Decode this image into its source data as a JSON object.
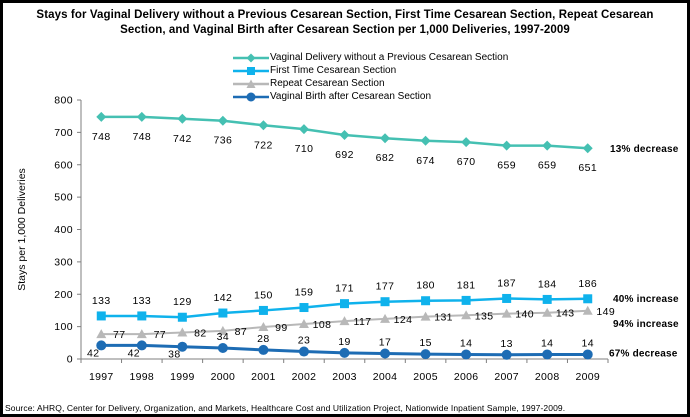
{
  "source": "Source: AHRQ, Center for Delivery, Organization, and Markets, Healthcare Cost and Utilization Project, Nationwide Inpatient Sample, 1997-2009.",
  "chart_data": {
    "type": "line",
    "title": "Stays for Vaginal Delivery without a Previous Cesarean Section, First Time Cesarean Section, Repeat Cesarean Section, and Vaginal Birth after Cesarean Section per 1,000 Deliveries, 1997-2009",
    "xlabel": "",
    "ylabel": "Stays per 1,000 Deliveries",
    "ylim": [
      0,
      800
    ],
    "yticks": [
      0,
      100,
      200,
      300,
      400,
      500,
      600,
      700,
      800
    ],
    "grid": false,
    "legend_position": "top",
    "categories": [
      "1997",
      "1998",
      "1999",
      "2000",
      "2001",
      "2002",
      "2003",
      "2004",
      "2005",
      "2006",
      "2007",
      "2008",
      "2009"
    ],
    "series": [
      {
        "name": "Vaginal Delivery without a Previous Cesarean Section",
        "marker": "diamond",
        "color": "#45C0B2",
        "values": [
          748,
          748,
          742,
          736,
          722,
          710,
          692,
          682,
          674,
          670,
          659,
          659,
          651
        ],
        "annotation": "13% decrease"
      },
      {
        "name": "First Time Cesarean Section",
        "marker": "square",
        "color": "#0FB2EC",
        "values": [
          133,
          133,
          129,
          142,
          150,
          159,
          171,
          177,
          180,
          181,
          187,
          184,
          186
        ],
        "annotation": "40% increase"
      },
      {
        "name": "Repeat Cesarean Section",
        "marker": "triangle",
        "color": "#B8B8B8",
        "values": [
          77,
          77,
          82,
          87,
          99,
          108,
          117,
          124,
          131,
          135,
          140,
          143,
          149
        ],
        "annotation": "94% increase"
      },
      {
        "name": "Vaginal Birth after Cesarean Section",
        "marker": "circle",
        "color": "#1D6CB4",
        "values": [
          42,
          42,
          38,
          34,
          28,
          23,
          19,
          17,
          15,
          14,
          13,
          14,
          14
        ],
        "annotation": "67% decrease"
      }
    ]
  }
}
